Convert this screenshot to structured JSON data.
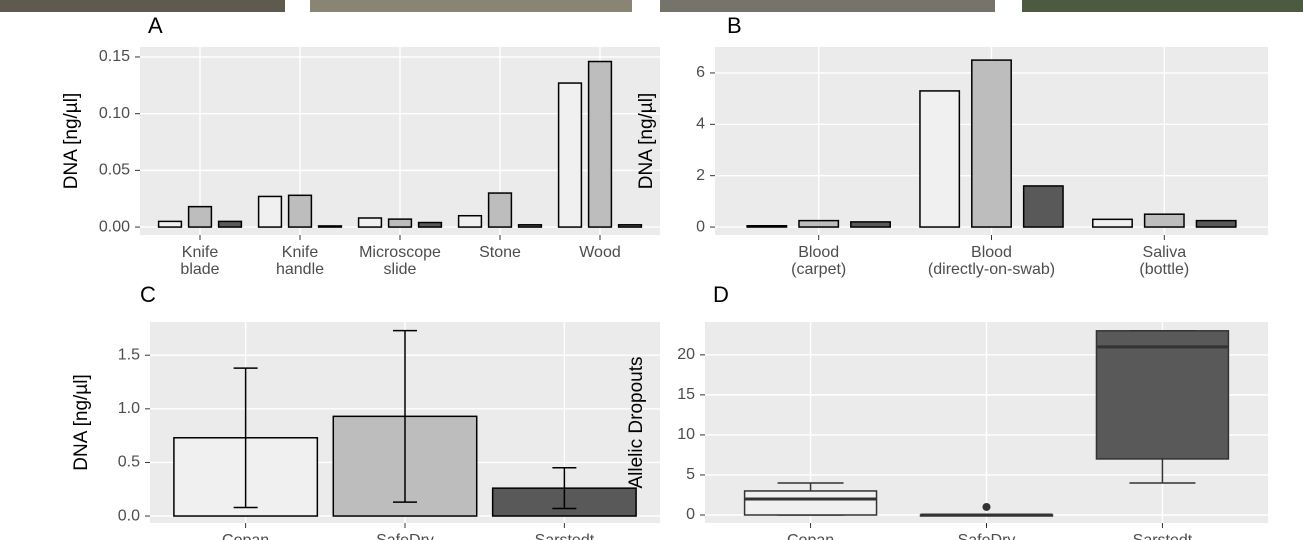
{
  "chart_data": [
    {
      "type": "bar",
      "title": "A",
      "y_label": "DNA [ng/µl]",
      "categories": [
        "Knife\nblade",
        "Knife\nhandle",
        "Microscope\nslide",
        "Stone",
        "Wood"
      ],
      "series": [
        {
          "color": "#f0f0f0",
          "values": [
            0.005,
            0.027,
            0.008,
            0.01,
            0.127
          ]
        },
        {
          "color": "#bdbdbd",
          "values": [
            0.018,
            0.028,
            0.007,
            0.03,
            0.146
          ]
        },
        {
          "color": "#595959",
          "values": [
            0.005,
            0.001,
            0.004,
            0.002,
            0.002
          ]
        }
      ],
      "ylim": [
        -0.007,
        0.1588
      ],
      "yticks": [
        {
          "value": 0,
          "label": "0.00"
        },
        0.05,
        {
          "value": 0.1,
          "label": "0.10"
        },
        0.15
      ],
      "grid": true
    },
    {
      "type": "bar",
      "title": "B",
      "y_label": "DNA [ng/µl]",
      "categories": [
        "Blood\n(carpet)",
        "Blood\n(directly-on-swab)",
        "Saliva\n(bottle)"
      ],
      "series": [
        {
          "color": "#f0f0f0",
          "values": [
            0.05,
            5.3,
            0.3
          ]
        },
        {
          "color": "#bdbdbd",
          "values": [
            0.25,
            6.5,
            0.5
          ]
        },
        {
          "color": "#595959",
          "values": [
            0.2,
            1.6,
            0.25
          ]
        }
      ],
      "ylim": [
        -0.31,
        7.01
      ],
      "yticks": [
        0,
        2,
        4,
        6
      ],
      "grid": true
    },
    {
      "type": "errorbar",
      "title": "C",
      "y_label": "DNA [ng/µl]",
      "categories": [
        "Copan",
        "SafeDry",
        "Sarstedt"
      ],
      "colors": [
        "#f0f0f0",
        "#bdbdbd",
        "#595959"
      ],
      "values": [
        0.73,
        0.93,
        0.26
      ],
      "errors": [
        0.65,
        0.8,
        0.19
      ],
      "ylim": [
        -0.065,
        1.81
      ],
      "yticks": [
        {
          "value": 0,
          "label": "0.0"
        },
        0.5,
        {
          "value": 1,
          "label": "1.0"
        },
        1.5
      ],
      "grid": true
    },
    {
      "type": "box",
      "title": "D",
      "y_label": "Allelic Dropouts",
      "categories": [
        "Copan",
        "SafeDry",
        "Sarstedt"
      ],
      "colors": [
        "#f0f0f0",
        "#bdbdbd",
        "#595959"
      ],
      "boxes": [
        {
          "min": 0,
          "q1": 0,
          "median": 2,
          "q3": 3,
          "max": 4,
          "outliers": []
        },
        {
          "min": 0,
          "q1": 0,
          "median": 0,
          "q3": 0,
          "max": 0,
          "outliers": [
            1
          ]
        },
        {
          "min": 4,
          "q1": 7,
          "median": 21,
          "q3": 23,
          "max": 23,
          "outliers": []
        }
      ],
      "ylim": [
        -1,
        24.1
      ],
      "yticks": [
        0,
        5,
        10,
        15,
        20
      ],
      "grid": true
    }
  ]
}
